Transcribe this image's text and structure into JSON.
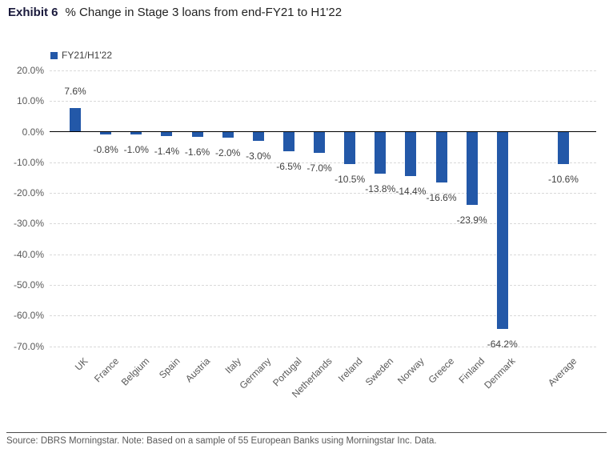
{
  "title": {
    "exhibit": "Exhibit 6",
    "text": "% Change in Stage 3 loans from end-FY21 to H1'22"
  },
  "legend": {
    "label": "FY21/H1'22"
  },
  "chart_data": {
    "type": "bar",
    "title": "% Change in Stage 3 loans from end-FY21 to H1'22",
    "series_name": "FY21/H1'22",
    "categories": [
      "UK",
      "France",
      "Belgium",
      "Spain",
      "Austria",
      "Italy",
      "Germany",
      "Portugal",
      "Netherlands",
      "Ireland",
      "Sweden",
      "Norway",
      "Greece",
      "Finland",
      "Denmark",
      "Average"
    ],
    "values": [
      7.6,
      -0.8,
      -1.0,
      -1.4,
      -1.6,
      -2.0,
      -3.0,
      -6.5,
      -7.0,
      -10.5,
      -13.8,
      -14.4,
      -16.6,
      -23.9,
      -64.2,
      -10.6
    ],
    "value_labels": [
      "7.6%",
      "-0.8%",
      "-1.0%",
      "-1.4%",
      "-1.6%",
      "-2.0%",
      "-3.0%",
      "-6.5%",
      "-7.0%",
      "-10.5%",
      "-13.8%",
      "-14.4%",
      "-16.6%",
      "-23.9%",
      "-64.2%",
      "-10.6%"
    ],
    "slot_index": [
      0,
      1,
      2,
      3,
      4,
      5,
      6,
      7,
      8,
      9,
      10,
      11,
      12,
      13,
      14,
      16
    ],
    "y_tick_labels": [
      "20.0%",
      "10.0%",
      "0.0%",
      "-10.0%",
      "-20.0%",
      "-30.0%",
      "-40.0%",
      "-50.0%",
      "-60.0%",
      "-70.0%"
    ],
    "y_tick_values": [
      20,
      10,
      0,
      -10,
      -20,
      -30,
      -40,
      -50,
      -60,
      -70
    ],
    "ylim": [
      -70,
      20
    ],
    "bar_color": "#2358A8",
    "grid": "horizontal-dashed",
    "legend_position": "top-left"
  },
  "footer": {
    "source": "Source: DBRS Morningstar. Note: Based on a sample of 55 European Banks using Morningstar Inc. Data."
  }
}
